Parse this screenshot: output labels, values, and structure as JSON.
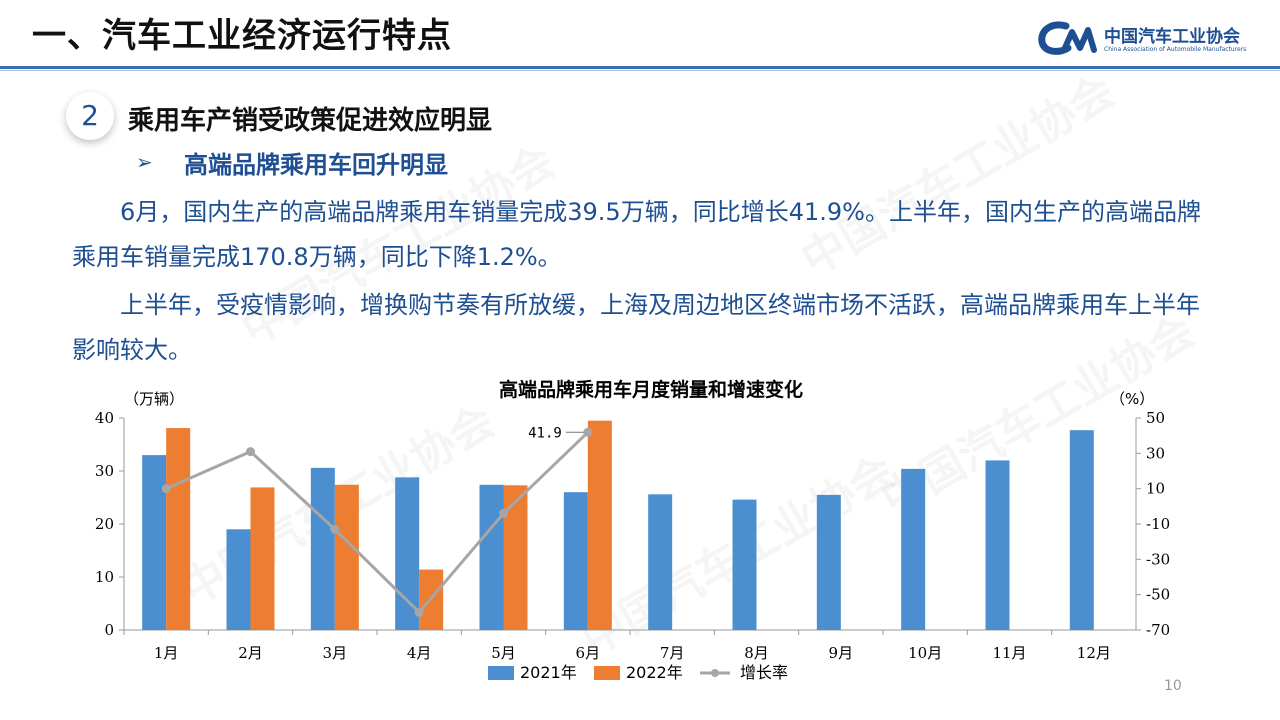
{
  "header": {
    "title": "一、汽车工业经济运行特点",
    "logo_cn": "中国汽车工业协会",
    "logo_en": "China Association of Automobile Manufacturers",
    "accent_color": "#3a6fb0"
  },
  "section": {
    "number": "2",
    "title": "乘用车产销受政策促进效应明显",
    "bullet": "➢",
    "subtitle": "高端品牌乘用车回升明显"
  },
  "paragraphs": [
    "6月，国内生产的高端品牌乘用车销量完成39.5万辆，同比增长41.9%。上半年，国内生产的高端品牌乘用车销量完成170.8万辆，同比下降1.2%。",
    "上半年，受疫情影响，增换购节奏有所放缓，上海及周边地区终端市场不活跃，高端品牌乘用车上半年影响较大。"
  ],
  "watermark_text": "中国汽车工业协会",
  "page_number": "10",
  "chart_data": {
    "type": "bar",
    "title": "高端品牌乘用车月度销量和增速变化",
    "left_unit": "（万辆）",
    "right_unit": "（%）",
    "categories": [
      "1月",
      "2月",
      "3月",
      "4月",
      "5月",
      "6月",
      "7月",
      "8月",
      "9月",
      "10月",
      "11月",
      "12月"
    ],
    "ylim": [
      0,
      40
    ],
    "yticks": [
      0,
      10,
      20,
      30,
      40
    ],
    "y2lim": [
      -70,
      50
    ],
    "y2ticks": [
      50,
      30,
      10,
      -10,
      -30,
      -50,
      -70
    ],
    "series": [
      {
        "name": "2021年",
        "color": "#4b8fd0",
        "values": [
          33.0,
          19.0,
          30.6,
          28.8,
          27.4,
          26.0,
          25.6,
          24.6,
          25.5,
          30.4,
          32.0,
          37.7
        ]
      },
      {
        "name": "2022年",
        "color": "#ed7d31",
        "values": [
          38.1,
          26.9,
          27.4,
          11.4,
          27.3,
          39.5,
          null,
          null,
          null,
          null,
          null,
          null
        ]
      }
    ],
    "line": {
      "name": "增长率",
      "color": "#a6a6a6",
      "values": [
        10.0,
        31.0,
        -13.0,
        -60.0,
        -4.0,
        41.9
      ]
    },
    "annotation": {
      "index": 5,
      "label": "41.9"
    },
    "grid": false,
    "legend_position": "bottom"
  }
}
